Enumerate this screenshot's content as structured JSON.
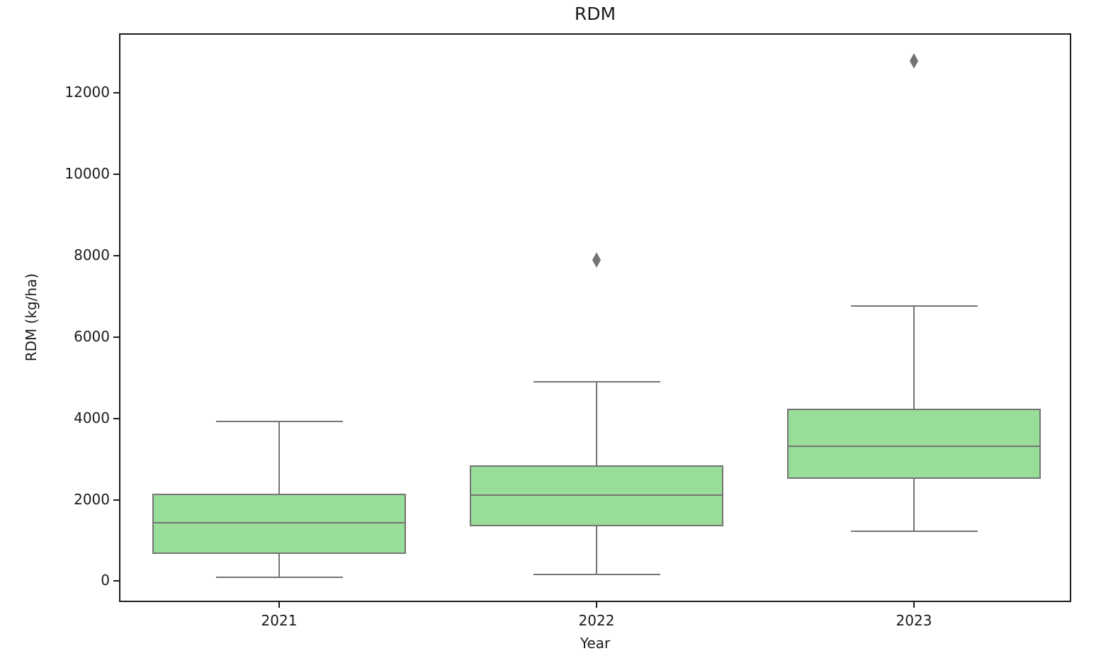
{
  "figure": {
    "title": "RDM",
    "xlabel": "Year",
    "ylabel": "RDM (kg/ha)"
  },
  "chart_data": {
    "type": "box",
    "title": "RDM",
    "xlabel": "Year",
    "ylabel": "RDM (kg/ha)",
    "categories": [
      "2021",
      "2022",
      "2023"
    ],
    "series": [
      {
        "name": "2021",
        "whislo": 90,
        "q1": 670,
        "med": 1440,
        "q3": 2150,
        "whishi": 3930,
        "fliers": []
      },
      {
        "name": "2022",
        "whislo": 160,
        "q1": 1340,
        "med": 2120,
        "q3": 2850,
        "whishi": 4900,
        "fliers": [
          7900
        ]
      },
      {
        "name": "2023",
        "whislo": 1230,
        "q1": 2520,
        "med": 3320,
        "q3": 4240,
        "whishi": 6760,
        "fliers": [
          12780
        ]
      }
    ],
    "yticks": [
      0,
      2000,
      4000,
      6000,
      8000,
      10000,
      12000
    ],
    "ylim": [
      -550,
      13430
    ],
    "grid": false,
    "legend_position": "none",
    "box_fill_color": "#98de98",
    "box_edge_color": "#747474",
    "median_color": "#747474",
    "whisker_color": "#747474",
    "flier_color": "#737373",
    "axis_color": "#1c1c1c"
  }
}
